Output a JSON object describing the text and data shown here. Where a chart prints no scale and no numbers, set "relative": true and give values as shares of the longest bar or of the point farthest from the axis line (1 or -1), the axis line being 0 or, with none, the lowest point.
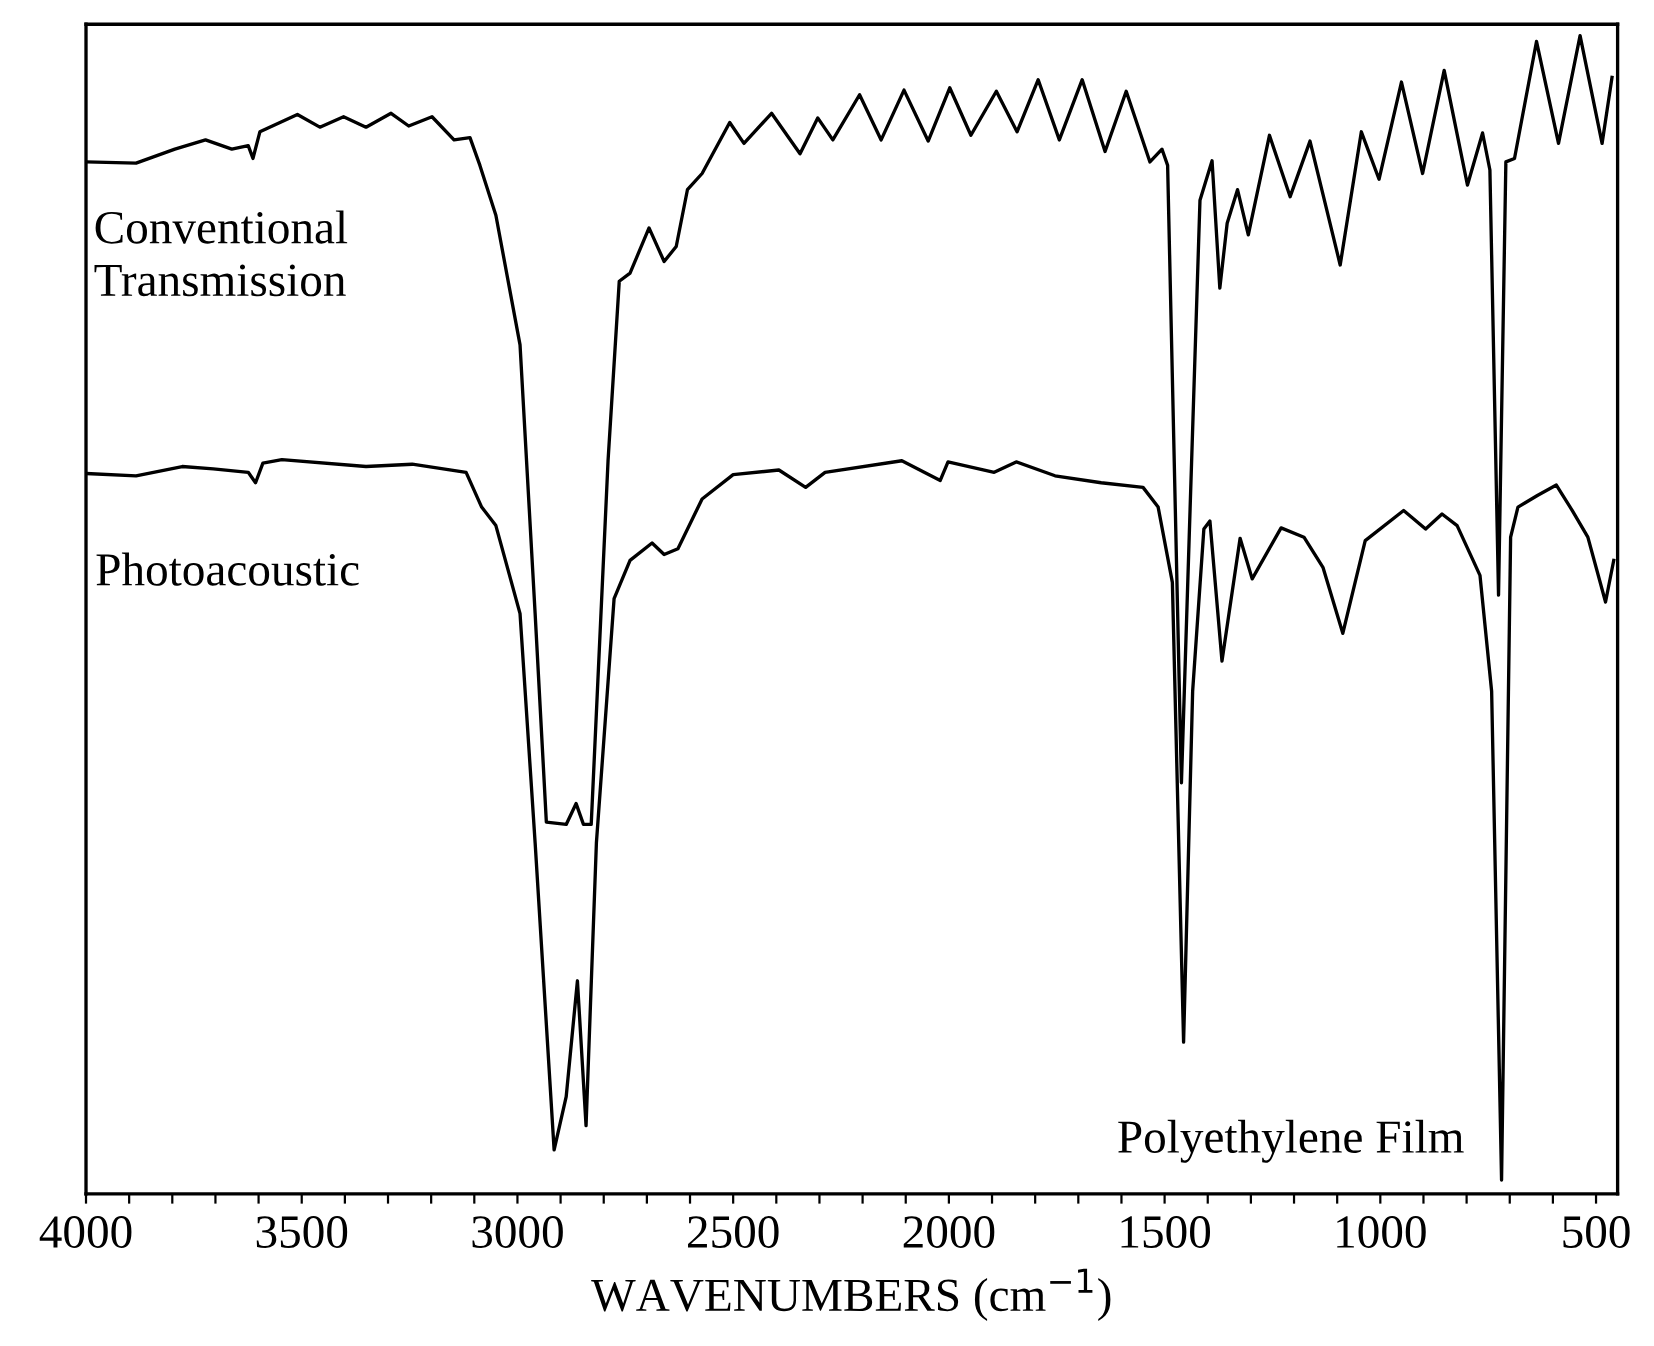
{
  "chart_data": {
    "type": "line",
    "relative": true,
    "xlabel": "WAVENUMBERS (cm$^{−1}$)",
    "annotations": [
      "Conventional\nTransmission",
      "Photoacoustic",
      "Polyethylene Film"
    ],
    "xlim": [
      4000,
      450
    ],
    "xticks": [
      4000,
      {
        "value": 3900,
        "label": null
      },
      {
        "value": 3800,
        "label": null
      },
      {
        "value": 3700,
        "label": null
      },
      {
        "value": 3600,
        "label": null
      },
      3500,
      {
        "value": 3400,
        "label": null
      },
      {
        "value": 3300,
        "label": null
      },
      {
        "value": 3200,
        "label": null
      },
      {
        "value": 3100,
        "label": null
      },
      3000,
      {
        "value": 2900,
        "label": null
      },
      {
        "value": 2800,
        "label": null
      },
      {
        "value": 2700,
        "label": null
      },
      {
        "value": 2600,
        "label": null
      },
      2500,
      {
        "value": 2400,
        "label": null
      },
      {
        "value": 2300,
        "label": null
      },
      {
        "value": 2200,
        "label": null
      },
      {
        "value": 2100,
        "label": null
      },
      2000,
      {
        "value": 1900,
        "label": null
      },
      {
        "value": 1800,
        "label": null
      },
      {
        "value": 1700,
        "label": null
      },
      {
        "value": 1600,
        "label": null
      },
      1500,
      {
        "value": 1400,
        "label": null
      },
      {
        "value": 1300,
        "label": null
      },
      {
        "value": 1200,
        "label": null
      },
      {
        "value": 1100,
        "label": null
      },
      1000,
      {
        "value": 900,
        "label": null
      },
      {
        "value": 800,
        "label": null
      },
      {
        "value": 700,
        "label": null
      },
      {
        "value": 600,
        "label": null
      },
      500
    ],
    "tick_labels": "x",
    "grid": false,
    "legend": false,
    "marker": "none",
    "line_style": "solid",
    "series": [
      {
        "color": "#000000",
        "x": [
          4000,
          3884,
          3794,
          3723,
          3662,
          3624,
          3613,
          3597,
          3510,
          3458,
          3403,
          3351,
          3293,
          3252,
          3198,
          3147,
          3110,
          3087,
          3050,
          2994,
          2959,
          2933,
          2887,
          2864,
          2847,
          2829,
          2790,
          2764,
          2739,
          2695,
          2660,
          2632,
          2606,
          2572,
          2508,
          2475,
          2411,
          2345,
          2304,
          2269,
          2207,
          2157,
          2104,
          2048,
          1998,
          1949,
          1890,
          1842,
          1793,
          1744,
          1691,
          1638,
          1589,
          1534,
          1506,
          1493,
          1461,
          1443,
          1418,
          1390,
          1372,
          1355,
          1331,
          1306,
          1257,
          1209,
          1163,
          1093,
          1044,
          1003,
          951,
          902,
          852,
          798,
          763,
          746,
          726,
          709,
          689,
          638,
          587,
          537,
          486,
          463
        ],
        "values": [
          0.891,
          0.89,
          0.902,
          0.91,
          0.902,
          0.905,
          0.894,
          0.917,
          0.932,
          0.921,
          0.93,
          0.921,
          0.933,
          0.922,
          0.93,
          0.91,
          0.912,
          0.888,
          0.845,
          0.733,
          0.501,
          0.321,
          0.319,
          0.337,
          0.319,
          0.319,
          0.633,
          0.788,
          0.795,
          0.834,
          0.805,
          0.818,
          0.867,
          0.881,
          0.925,
          0.907,
          0.933,
          0.898,
          0.929,
          0.91,
          0.949,
          0.91,
          0.953,
          0.909,
          0.955,
          0.914,
          0.952,
          0.917,
          0.962,
          0.91,
          0.962,
          0.9,
          0.952,
          0.891,
          0.902,
          0.888,
          0.355,
          0.567,
          0.858,
          0.892,
          0.782,
          0.838,
          0.867,
          0.828,
          0.914,
          0.861,
          0.909,
          0.802,
          0.917,
          0.876,
          0.96,
          0.881,
          0.97,
          0.871,
          0.916,
          0.884,
          0.517,
          0.891,
          0.894,
          0.995,
          0.907,
          1.0,
          0.907,
          0.964
        ]
      },
      {
        "color": "#000000",
        "x": [
          4000,
          3884,
          3777,
          3705,
          3624,
          3607,
          3590,
          3546,
          3351,
          3244,
          3119,
          3083,
          3050,
          2994,
          2959,
          2915,
          2887,
          2861,
          2841,
          2817,
          2776,
          2739,
          2688,
          2660,
          2628,
          2572,
          2500,
          2394,
          2332,
          2287,
          2109,
          2020,
          2002,
          1895,
          1844,
          1754,
          1647,
          1550,
          1515,
          1482,
          1456,
          1435,
          1409,
          1395,
          1367,
          1325,
          1297,
          1230,
          1177,
          1133,
          1087,
          1035,
          946,
          895,
          857,
          822,
          769,
          742,
          719,
          698,
          681,
          636,
          592,
          555,
          519,
          478,
          459
        ],
        "values": [
          0.622,
          0.62,
          0.628,
          0.626,
          0.623,
          0.614,
          0.631,
          0.634,
          0.628,
          0.63,
          0.623,
          0.593,
          0.577,
          0.501,
          0.303,
          0.038,
          0.084,
          0.184,
          0.059,
          0.303,
          0.514,
          0.547,
          0.562,
          0.552,
          0.557,
          0.6,
          0.621,
          0.625,
          0.61,
          0.623,
          0.633,
          0.616,
          0.632,
          0.623,
          0.632,
          0.62,
          0.614,
          0.61,
          0.593,
          0.528,
          0.131,
          0.434,
          0.574,
          0.581,
          0.46,
          0.566,
          0.531,
          0.575,
          0.567,
          0.541,
          0.484,
          0.564,
          0.59,
          0.574,
          0.587,
          0.577,
          0.534,
          0.434,
          0.012,
          0.567,
          0.593,
          0.603,
          0.612,
          0.59,
          0.567,
          0.511,
          0.547
        ]
      }
    ]
  }
}
